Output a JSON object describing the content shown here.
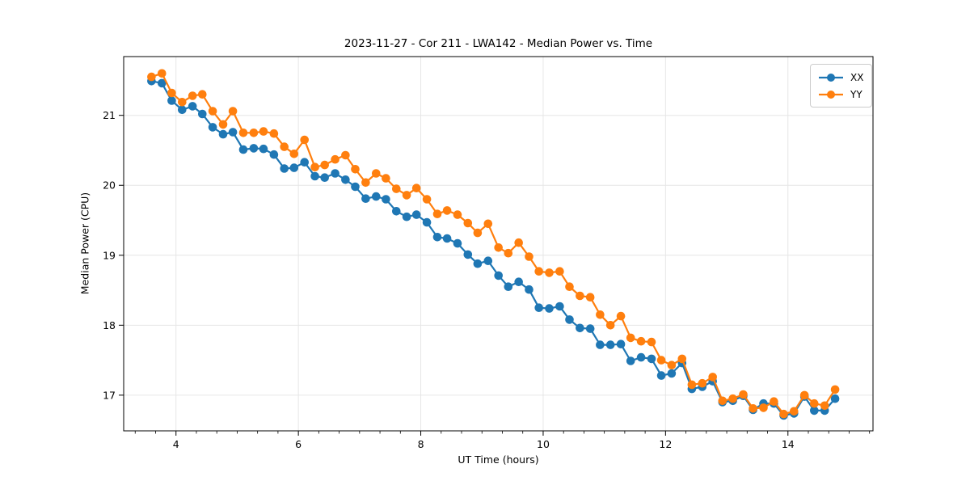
{
  "chart_data": {
    "type": "line",
    "title": "2023-11-27 - Cor 211 - LWA142 - Median Power vs. Time",
    "xlabel": "UT Time (hours)",
    "ylabel": "Median Power (CPU)",
    "xlim": [
      3.145,
      15.39
    ],
    "ylim": [
      16.49,
      21.84
    ],
    "x_ticks": [
      4,
      6,
      8,
      10,
      12,
      14
    ],
    "y_ticks": [
      17,
      18,
      19,
      20,
      21
    ],
    "x_minor_tick_step": 0.33333,
    "grid": true,
    "grid_color": "#e6e6e6",
    "spine_color": "#000000",
    "legend_position": "upper right",
    "marker": "circle",
    "x": [
      3.6,
      3.77,
      3.93,
      4.1,
      4.27,
      4.43,
      4.6,
      4.77,
      4.93,
      5.1,
      5.27,
      5.43,
      5.6,
      5.77,
      5.93,
      6.1,
      6.27,
      6.43,
      6.6,
      6.77,
      6.93,
      7.1,
      7.27,
      7.43,
      7.6,
      7.77,
      7.93,
      8.1,
      8.27,
      8.43,
      8.6,
      8.77,
      8.93,
      9.1,
      9.27,
      9.43,
      9.6,
      9.77,
      9.93,
      10.1,
      10.27,
      10.43,
      10.6,
      10.77,
      10.93,
      11.1,
      11.27,
      11.43,
      11.6,
      11.77,
      11.93,
      12.1,
      12.27,
      12.43,
      12.6,
      12.77,
      12.93,
      13.1,
      13.27,
      13.43,
      13.6,
      13.77,
      13.93,
      14.1,
      14.27,
      14.43,
      14.6,
      14.77
    ],
    "series": [
      {
        "name": "XX",
        "color": "#1f77b4",
        "values": [
          21.49,
          21.46,
          21.21,
          21.08,
          21.13,
          21.02,
          20.83,
          20.73,
          20.76,
          20.51,
          20.53,
          20.52,
          20.44,
          20.24,
          20.25,
          20.33,
          20.13,
          20.11,
          20.17,
          20.08,
          19.98,
          19.81,
          19.84,
          19.8,
          19.63,
          19.55,
          19.58,
          19.47,
          19.26,
          19.24,
          19.17,
          19.01,
          18.88,
          18.92,
          18.71,
          18.55,
          18.62,
          18.51,
          18.25,
          18.24,
          18.27,
          18.08,
          17.96,
          17.95,
          17.72,
          17.72,
          17.73,
          17.49,
          17.54,
          17.52,
          17.28,
          17.31,
          17.46,
          17.09,
          17.12,
          17.2,
          16.9,
          16.92,
          16.99,
          16.79,
          16.88,
          16.88,
          16.71,
          16.74,
          16.98,
          16.78,
          16.78,
          16.95
        ]
      },
      {
        "name": "YY",
        "color": "#ff7f0e",
        "values": [
          21.55,
          21.6,
          21.32,
          21.19,
          21.28,
          21.3,
          21.06,
          20.87,
          21.06,
          20.75,
          20.75,
          20.77,
          20.74,
          20.55,
          20.45,
          20.65,
          20.26,
          20.29,
          20.37,
          20.43,
          20.23,
          20.04,
          20.17,
          20.1,
          19.95,
          19.86,
          19.96,
          19.8,
          19.59,
          19.64,
          19.58,
          19.46,
          19.32,
          19.45,
          19.11,
          19.03,
          19.18,
          18.98,
          18.77,
          18.75,
          18.77,
          18.55,
          18.42,
          18.4,
          18.15,
          18.0,
          18.13,
          17.82,
          17.77,
          17.76,
          17.5,
          17.43,
          17.52,
          17.15,
          17.17,
          17.26,
          16.92,
          16.95,
          17.01,
          16.81,
          16.82,
          16.91,
          16.73,
          16.77,
          17.0,
          16.88,
          16.85,
          17.08
        ]
      }
    ]
  }
}
